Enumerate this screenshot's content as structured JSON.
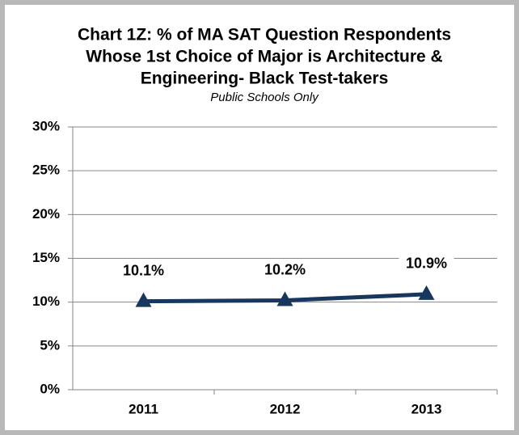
{
  "chart_data": {
    "type": "line",
    "title": [
      "Chart 1Z: % of MA SAT Question Respondents",
      "Whose 1st Choice of Major is Architecture &",
      "Engineering- Black Test-takers"
    ],
    "subtitle": "Public Schools Only",
    "categories": [
      "2011",
      "2012",
      "2013"
    ],
    "series": [
      {
        "name": "Black Test-takers",
        "color": "#17375e",
        "values": [
          10.1,
          10.2,
          10.9
        ],
        "value_labels": [
          "10.1%",
          "10.2%",
          "10.9%"
        ]
      }
    ],
    "ylim": [
      0,
      30
    ],
    "yticks": [
      {
        "value": 0,
        "label": "0%"
      },
      {
        "value": 5,
        "label": "5%"
      },
      {
        "value": 10,
        "label": "10%"
      },
      {
        "value": 15,
        "label": "15%"
      },
      {
        "value": 20,
        "label": "20%"
      },
      {
        "value": 25,
        "label": "25%"
      },
      {
        "value": 30,
        "label": "30%"
      }
    ],
    "grid": true
  }
}
